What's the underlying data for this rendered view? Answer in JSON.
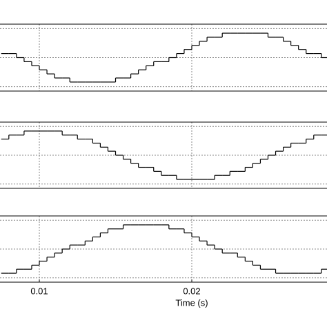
{
  "chart_data": [
    {
      "type": "line",
      "step": "post",
      "color": "#000000",
      "x": [
        0.0075,
        0.008,
        0.0085,
        0.009,
        0.0095,
        0.01,
        0.0105,
        0.011,
        0.0115,
        0.012,
        0.0125,
        0.013,
        0.0135,
        0.014,
        0.0145,
        0.015,
        0.0155,
        0.016,
        0.0165,
        0.017,
        0.0175,
        0.018,
        0.0185,
        0.019,
        0.0195,
        0.02,
        0.0205,
        0.021,
        0.0215,
        0.022,
        0.0225,
        0.023,
        0.0235,
        0.024,
        0.0245,
        0.025,
        0.0255,
        0.026,
        0.0265,
        0.027,
        0.0275,
        0.028,
        0.0285
      ],
      "values": [
        0.14,
        0.14,
        0,
        -0.14,
        -0.28,
        -0.42,
        -0.56,
        -0.7,
        -0.7,
        -0.84,
        -0.84,
        -0.84,
        -0.84,
        -0.84,
        -0.84,
        -0.7,
        -0.7,
        -0.56,
        -0.42,
        -0.28,
        -0.14,
        -0.14,
        0,
        0.14,
        0.28,
        0.42,
        0.56,
        0.7,
        0.7,
        0.84,
        0.84,
        0.84,
        0.84,
        0.84,
        0.84,
        0.7,
        0.7,
        0.56,
        0.42,
        0.28,
        0.14,
        0.14,
        0
      ],
      "xlim": [
        0.00742,
        0.02887
      ],
      "xticks": [
        0.01,
        0.02
      ],
      "ylim": [
        -1.15,
        1.15
      ],
      "yticks": [
        -1,
        0,
        1
      ],
      "grid": true
    },
    {
      "type": "line",
      "step": "post",
      "color": "#000000",
      "x": [
        0.0075,
        0.008,
        0.0085,
        0.009,
        0.0095,
        0.01,
        0.0105,
        0.011,
        0.0115,
        0.012,
        0.0125,
        0.013,
        0.0135,
        0.014,
        0.0145,
        0.015,
        0.0155,
        0.016,
        0.0165,
        0.017,
        0.0175,
        0.018,
        0.0185,
        0.019,
        0.0195,
        0.02,
        0.0205,
        0.021,
        0.0215,
        0.022,
        0.0225,
        0.023,
        0.0235,
        0.024,
        0.0245,
        0.025,
        0.0255,
        0.026,
        0.0265,
        0.027,
        0.0275,
        0.028,
        0.0285
      ],
      "values": [
        0.56,
        0.7,
        0.7,
        0.84,
        0.84,
        0.84,
        0.84,
        0.84,
        0.7,
        0.7,
        0.56,
        0.56,
        0.42,
        0.28,
        0.14,
        0,
        -0.14,
        -0.28,
        -0.42,
        -0.42,
        -0.56,
        -0.7,
        -0.7,
        -0.84,
        -0.84,
        -0.84,
        -0.84,
        -0.84,
        -0.7,
        -0.7,
        -0.56,
        -0.56,
        -0.42,
        -0.28,
        -0.14,
        0,
        0.14,
        0.28,
        0.42,
        0.42,
        0.56,
        0.7,
        0.7
      ],
      "xlim": [
        0.00742,
        0.02887
      ],
      "xticks": [
        0.01,
        0.02
      ],
      "ylim": [
        -1.15,
        1.15
      ],
      "yticks": [
        -1,
        0,
        1
      ],
      "grid": true
    },
    {
      "type": "line",
      "step": "post",
      "color": "#000000",
      "x": [
        0.0075,
        0.008,
        0.0085,
        0.009,
        0.0095,
        0.01,
        0.0105,
        0.011,
        0.0115,
        0.012,
        0.0125,
        0.013,
        0.0135,
        0.014,
        0.0145,
        0.015,
        0.0155,
        0.016,
        0.0165,
        0.017,
        0.0175,
        0.018,
        0.0185,
        0.019,
        0.0195,
        0.02,
        0.0205,
        0.021,
        0.0215,
        0.022,
        0.0225,
        0.023,
        0.0235,
        0.024,
        0.0245,
        0.025,
        0.0255,
        0.026,
        0.0265,
        0.027,
        0.0275,
        0.028,
        0.0285
      ],
      "values": [
        -0.84,
        -0.84,
        -0.7,
        -0.7,
        -0.56,
        -0.42,
        -0.28,
        -0.14,
        0,
        0.14,
        0.14,
        0.28,
        0.42,
        0.56,
        0.7,
        0.7,
        0.84,
        0.84,
        0.84,
        0.84,
        0.84,
        0.84,
        0.7,
        0.7,
        0.56,
        0.42,
        0.28,
        0.14,
        0,
        -0.14,
        -0.14,
        -0.28,
        -0.42,
        -0.56,
        -0.7,
        -0.7,
        -0.84,
        -0.84,
        -0.84,
        -0.84,
        -0.84,
        -0.84,
        -0.7
      ],
      "xlim": [
        0.00742,
        0.02887
      ],
      "xticks": [
        0.01,
        0.02
      ],
      "ylim": [
        -1.15,
        1.15
      ],
      "yticks": [
        -1,
        0,
        1
      ],
      "grid": true,
      "xlabel": "Time (s)"
    }
  ]
}
